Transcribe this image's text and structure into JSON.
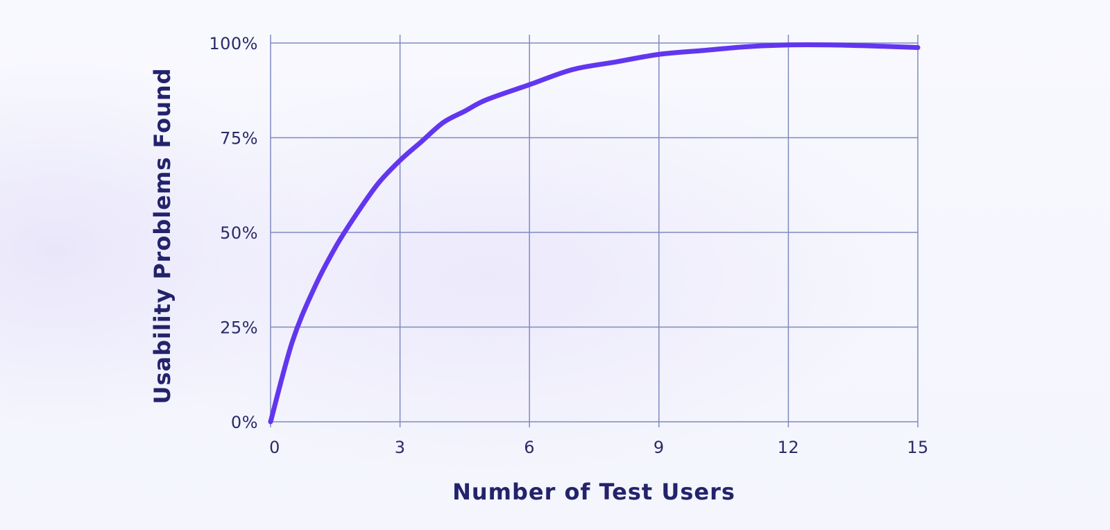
{
  "chart_data": {
    "type": "line",
    "title": "",
    "xlabel": "Number of Test Users",
    "ylabel": "Usability Problems Found",
    "xlim": [
      0,
      15
    ],
    "ylim": [
      0,
      100
    ],
    "x_ticks": [
      0,
      3,
      6,
      9,
      12,
      15
    ],
    "y_ticks": [
      0,
      25,
      50,
      75,
      100
    ],
    "x_tick_labels": [
      "0",
      "3",
      "6",
      "9",
      "12",
      "15"
    ],
    "y_tick_labels": [
      "0%",
      "25%",
      "50%",
      "75%",
      "100%"
    ],
    "grid": true,
    "legend": "none",
    "series": [
      {
        "color": "#6236ef",
        "x": [
          0,
          0.5,
          1,
          1.5,
          2,
          2.5,
          3,
          3.5,
          4,
          4.5,
          5,
          6,
          7,
          8,
          9,
          10,
          11,
          12,
          13,
          14,
          15
        ],
        "y": [
          0,
          21,
          35,
          46,
          55,
          63,
          69,
          74,
          79,
          82,
          85,
          89,
          93,
          95,
          97,
          98,
          99,
          99.5,
          99.5,
          99.2,
          98.8
        ]
      }
    ]
  }
}
